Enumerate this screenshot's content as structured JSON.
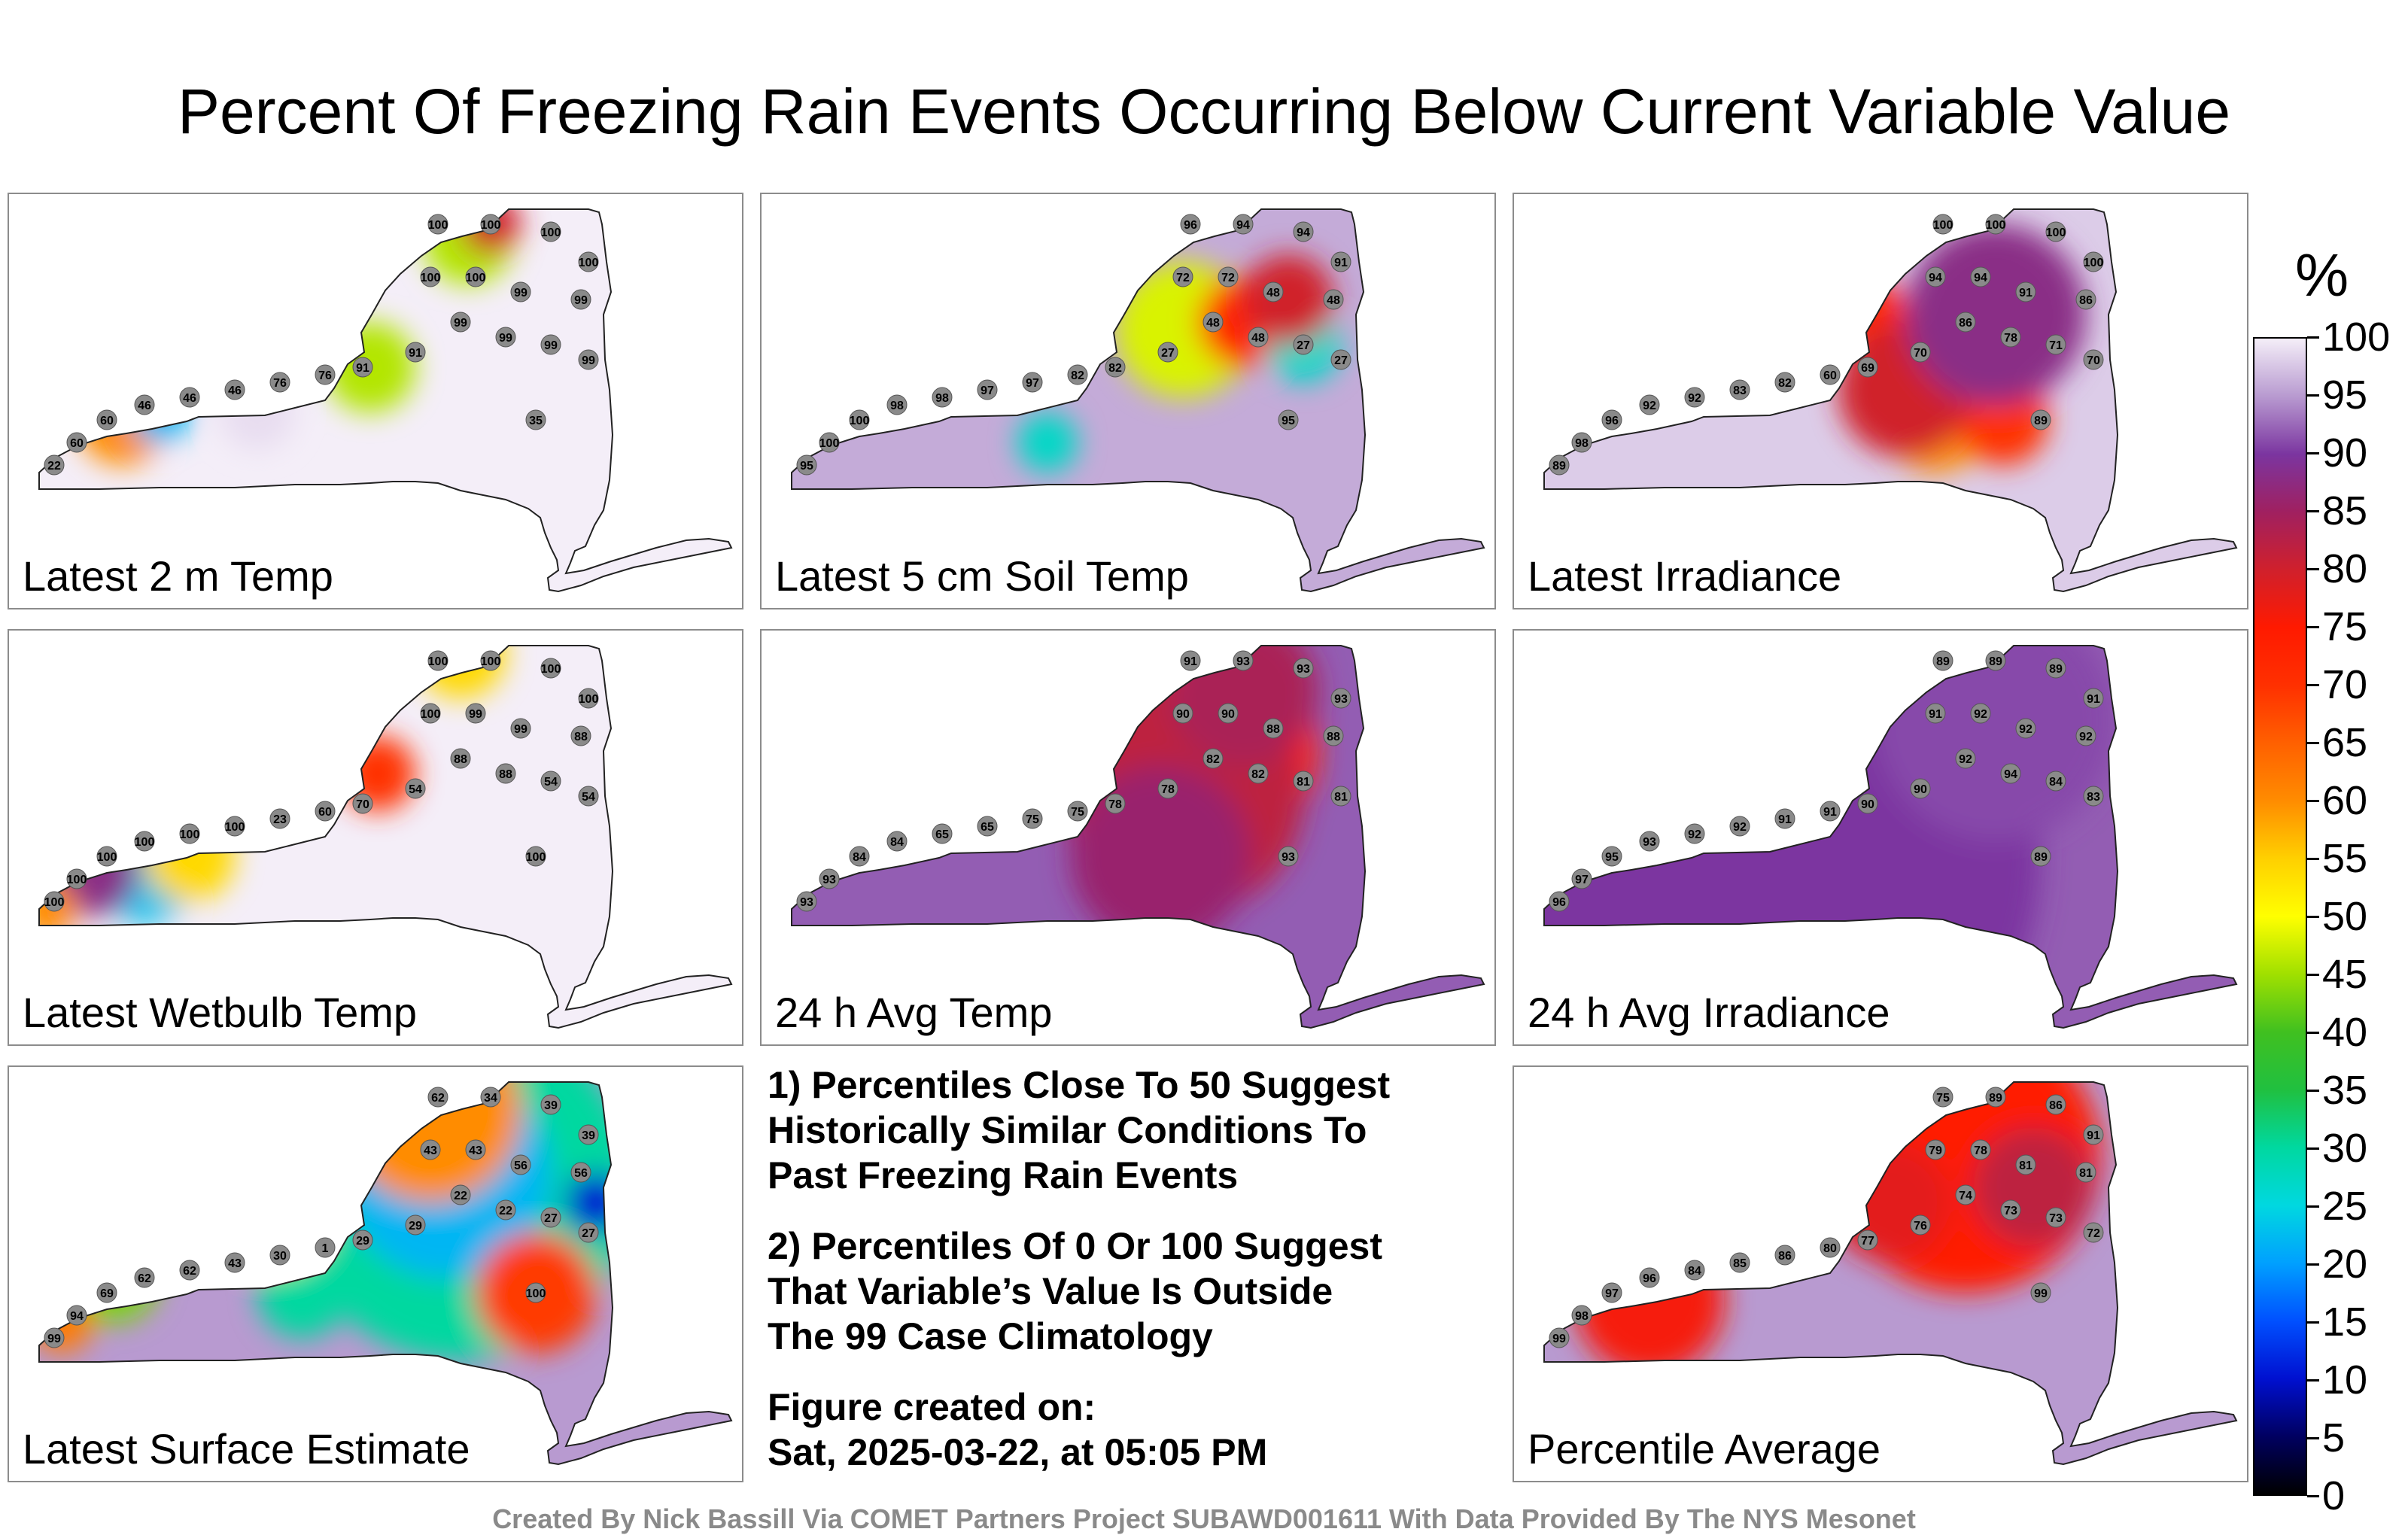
{
  "title": "Percent Of Freezing Rain Events Occurring Below Current Variable Value",
  "notes": {
    "note1": "1) Percentiles Close To 50 Suggest\nHistorically Similar Conditions To\nPast Freezing Rain Events",
    "note2": "2) Percentiles Of 0 Or 100 Suggest\nThat Variable’s Value Is Outside\nThe 99 Case Climatology",
    "created_label": "Figure created on:",
    "created_date": "Sat, 2025-03-22, at 05:05 PM"
  },
  "credit": "Created By Nick Bassill Via COMET Partners Project SUBAWD001611 With Data Provided By The NYS Mesonet",
  "colorbar": {
    "unit": "%",
    "ticks": [
      "100",
      "95",
      "90",
      "85",
      "80",
      "75",
      "70",
      "65",
      "60",
      "55",
      "50",
      "45",
      "40",
      "35",
      "30",
      "25",
      "20",
      "15",
      "10",
      "5",
      "0"
    ],
    "colors": {
      "100": "#f4eef8",
      "90": "#7b35a0",
      "80": "#d0202c",
      "75": "#ff1a00",
      "60": "#ff8c00",
      "50": "#ffff00",
      "40": "#40c020",
      "30": "#00d8a0",
      "20": "#00a0ff",
      "10": "#0010d0",
      "0": "#000000"
    }
  },
  "chart_data": [
    {
      "type": "heatmap",
      "title": "Latest 2 m Temp",
      "station_values": [
        100,
        100,
        100,
        100,
        100,
        100,
        99,
        99,
        99,
        99,
        99,
        99,
        91,
        91,
        76,
        76,
        46,
        46,
        46,
        60,
        60,
        22,
        35
      ]
    },
    {
      "type": "heatmap",
      "title": "Latest 5 cm Soil Temp",
      "station_values": [
        96,
        94,
        94,
        91,
        72,
        72,
        48,
        48,
        48,
        48,
        27,
        27,
        27,
        82,
        82,
        97,
        97,
        98,
        98,
        100,
        100,
        95,
        95
      ]
    },
    {
      "type": "heatmap",
      "title": "Latest Irradiance",
      "station_values": [
        100,
        100,
        100,
        100,
        94,
        94,
        91,
        86,
        86,
        78,
        71,
        70,
        70,
        69,
        60,
        82,
        83,
        92,
        92,
        96,
        98,
        89,
        89
      ]
    },
    {
      "type": "heatmap",
      "title": "Latest Wetbulb Temp",
      "station_values": [
        100,
        100,
        100,
        100,
        100,
        99,
        99,
        88,
        88,
        88,
        54,
        54,
        54,
        70,
        60,
        23,
        100,
        100,
        100,
        100,
        100,
        100,
        100
      ]
    },
    {
      "type": "heatmap",
      "title": "24 h Avg Temp",
      "station_values": [
        91,
        93,
        93,
        93,
        90,
        90,
        88,
        88,
        82,
        82,
        81,
        81,
        78,
        78,
        75,
        75,
        65,
        65,
        84,
        84,
        93,
        93,
        93
      ]
    },
    {
      "type": "heatmap",
      "title": "24 h Avg Irradiance",
      "station_values": [
        89,
        89,
        89,
        91,
        91,
        92,
        92,
        92,
        92,
        94,
        84,
        83,
        90,
        90,
        91,
        91,
        92,
        92,
        93,
        95,
        97,
        96,
        89
      ]
    },
    {
      "type": "heatmap",
      "title": "Latest Surface Estimate",
      "station_values": [
        62,
        34,
        39,
        39,
        43,
        43,
        56,
        56,
        22,
        22,
        27,
        27,
        29,
        29,
        1,
        30,
        43,
        62,
        62,
        69,
        94,
        99,
        100
      ]
    },
    {
      "type": "heatmap",
      "title": "Percentile Average",
      "station_values": [
        75,
        89,
        86,
        91,
        79,
        78,
        81,
        81,
        74,
        73,
        73,
        72,
        76,
        77,
        80,
        86,
        85,
        84,
        96,
        97,
        98,
        99,
        99
      ]
    }
  ]
}
